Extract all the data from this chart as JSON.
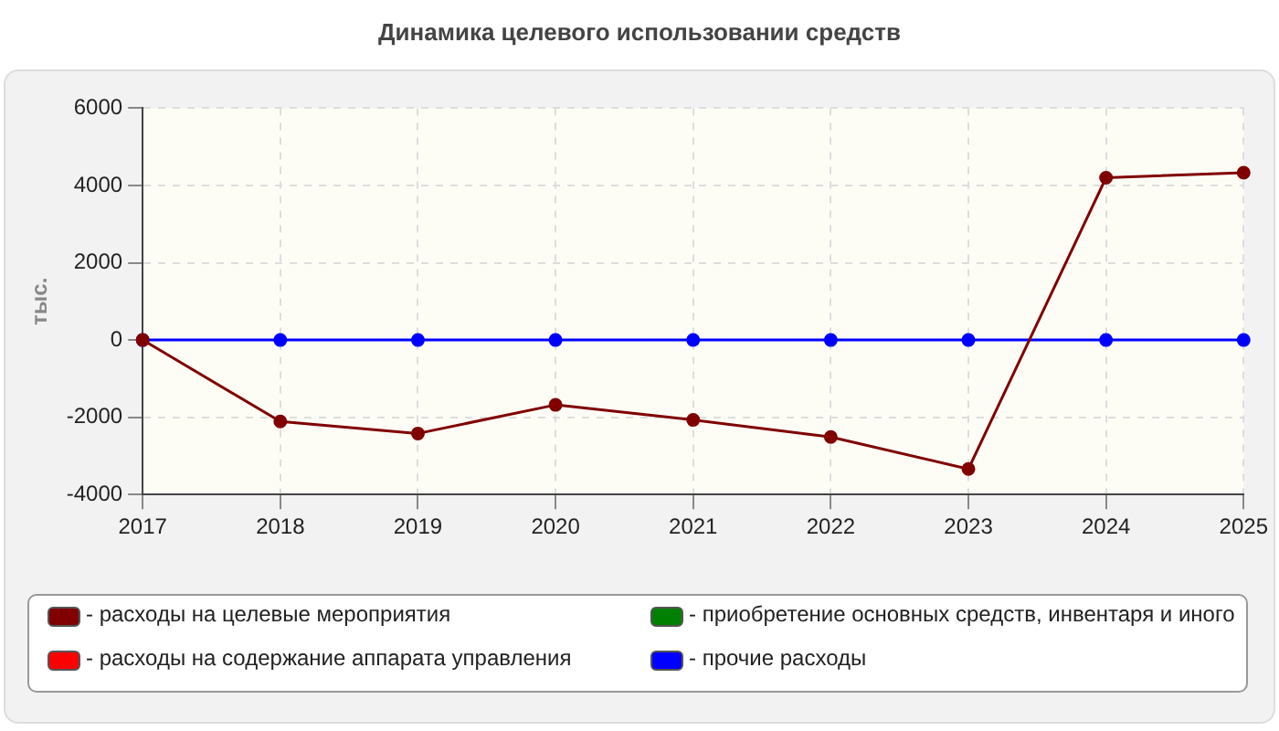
{
  "chart_data": {
    "type": "line",
    "title": "Динамика целевого использовании средств",
    "ylabel": "тыс.",
    "categories": [
      "2017",
      "2018",
      "2019",
      "2020",
      "2021",
      "2022",
      "2023",
      "2024",
      "2025"
    ],
    "series": [
      {
        "name": "- расходы на целевые мероприятия",
        "color": "#800000",
        "values": [
          0,
          -2110,
          -2420,
          -1680,
          -2070,
          -2510,
          -3340,
          4200,
          4330
        ]
      },
      {
        "name": "- расходы на содержание аппарата управления",
        "color": "#ff0000",
        "values": [
          null,
          null,
          null,
          null,
          null,
          null,
          null,
          null,
          null
        ]
      },
      {
        "name": "- приобретение основных средств, инвентаря и иного",
        "color": "#008000",
        "values": [
          null,
          null,
          null,
          null,
          null,
          null,
          null,
          null,
          null
        ]
      },
      {
        "name": "- прочие расходы",
        "color": "#0000ff",
        "values": [
          0,
          0,
          0,
          0,
          0,
          0,
          0,
          0,
          0
        ]
      }
    ],
    "ylim": [
      -4000,
      6000
    ],
    "yticks": [
      -4000,
      -2000,
      0,
      2000,
      4000,
      6000
    ],
    "grid": true,
    "legend": "bottom",
    "marker": "circle",
    "line_style": "solid"
  }
}
